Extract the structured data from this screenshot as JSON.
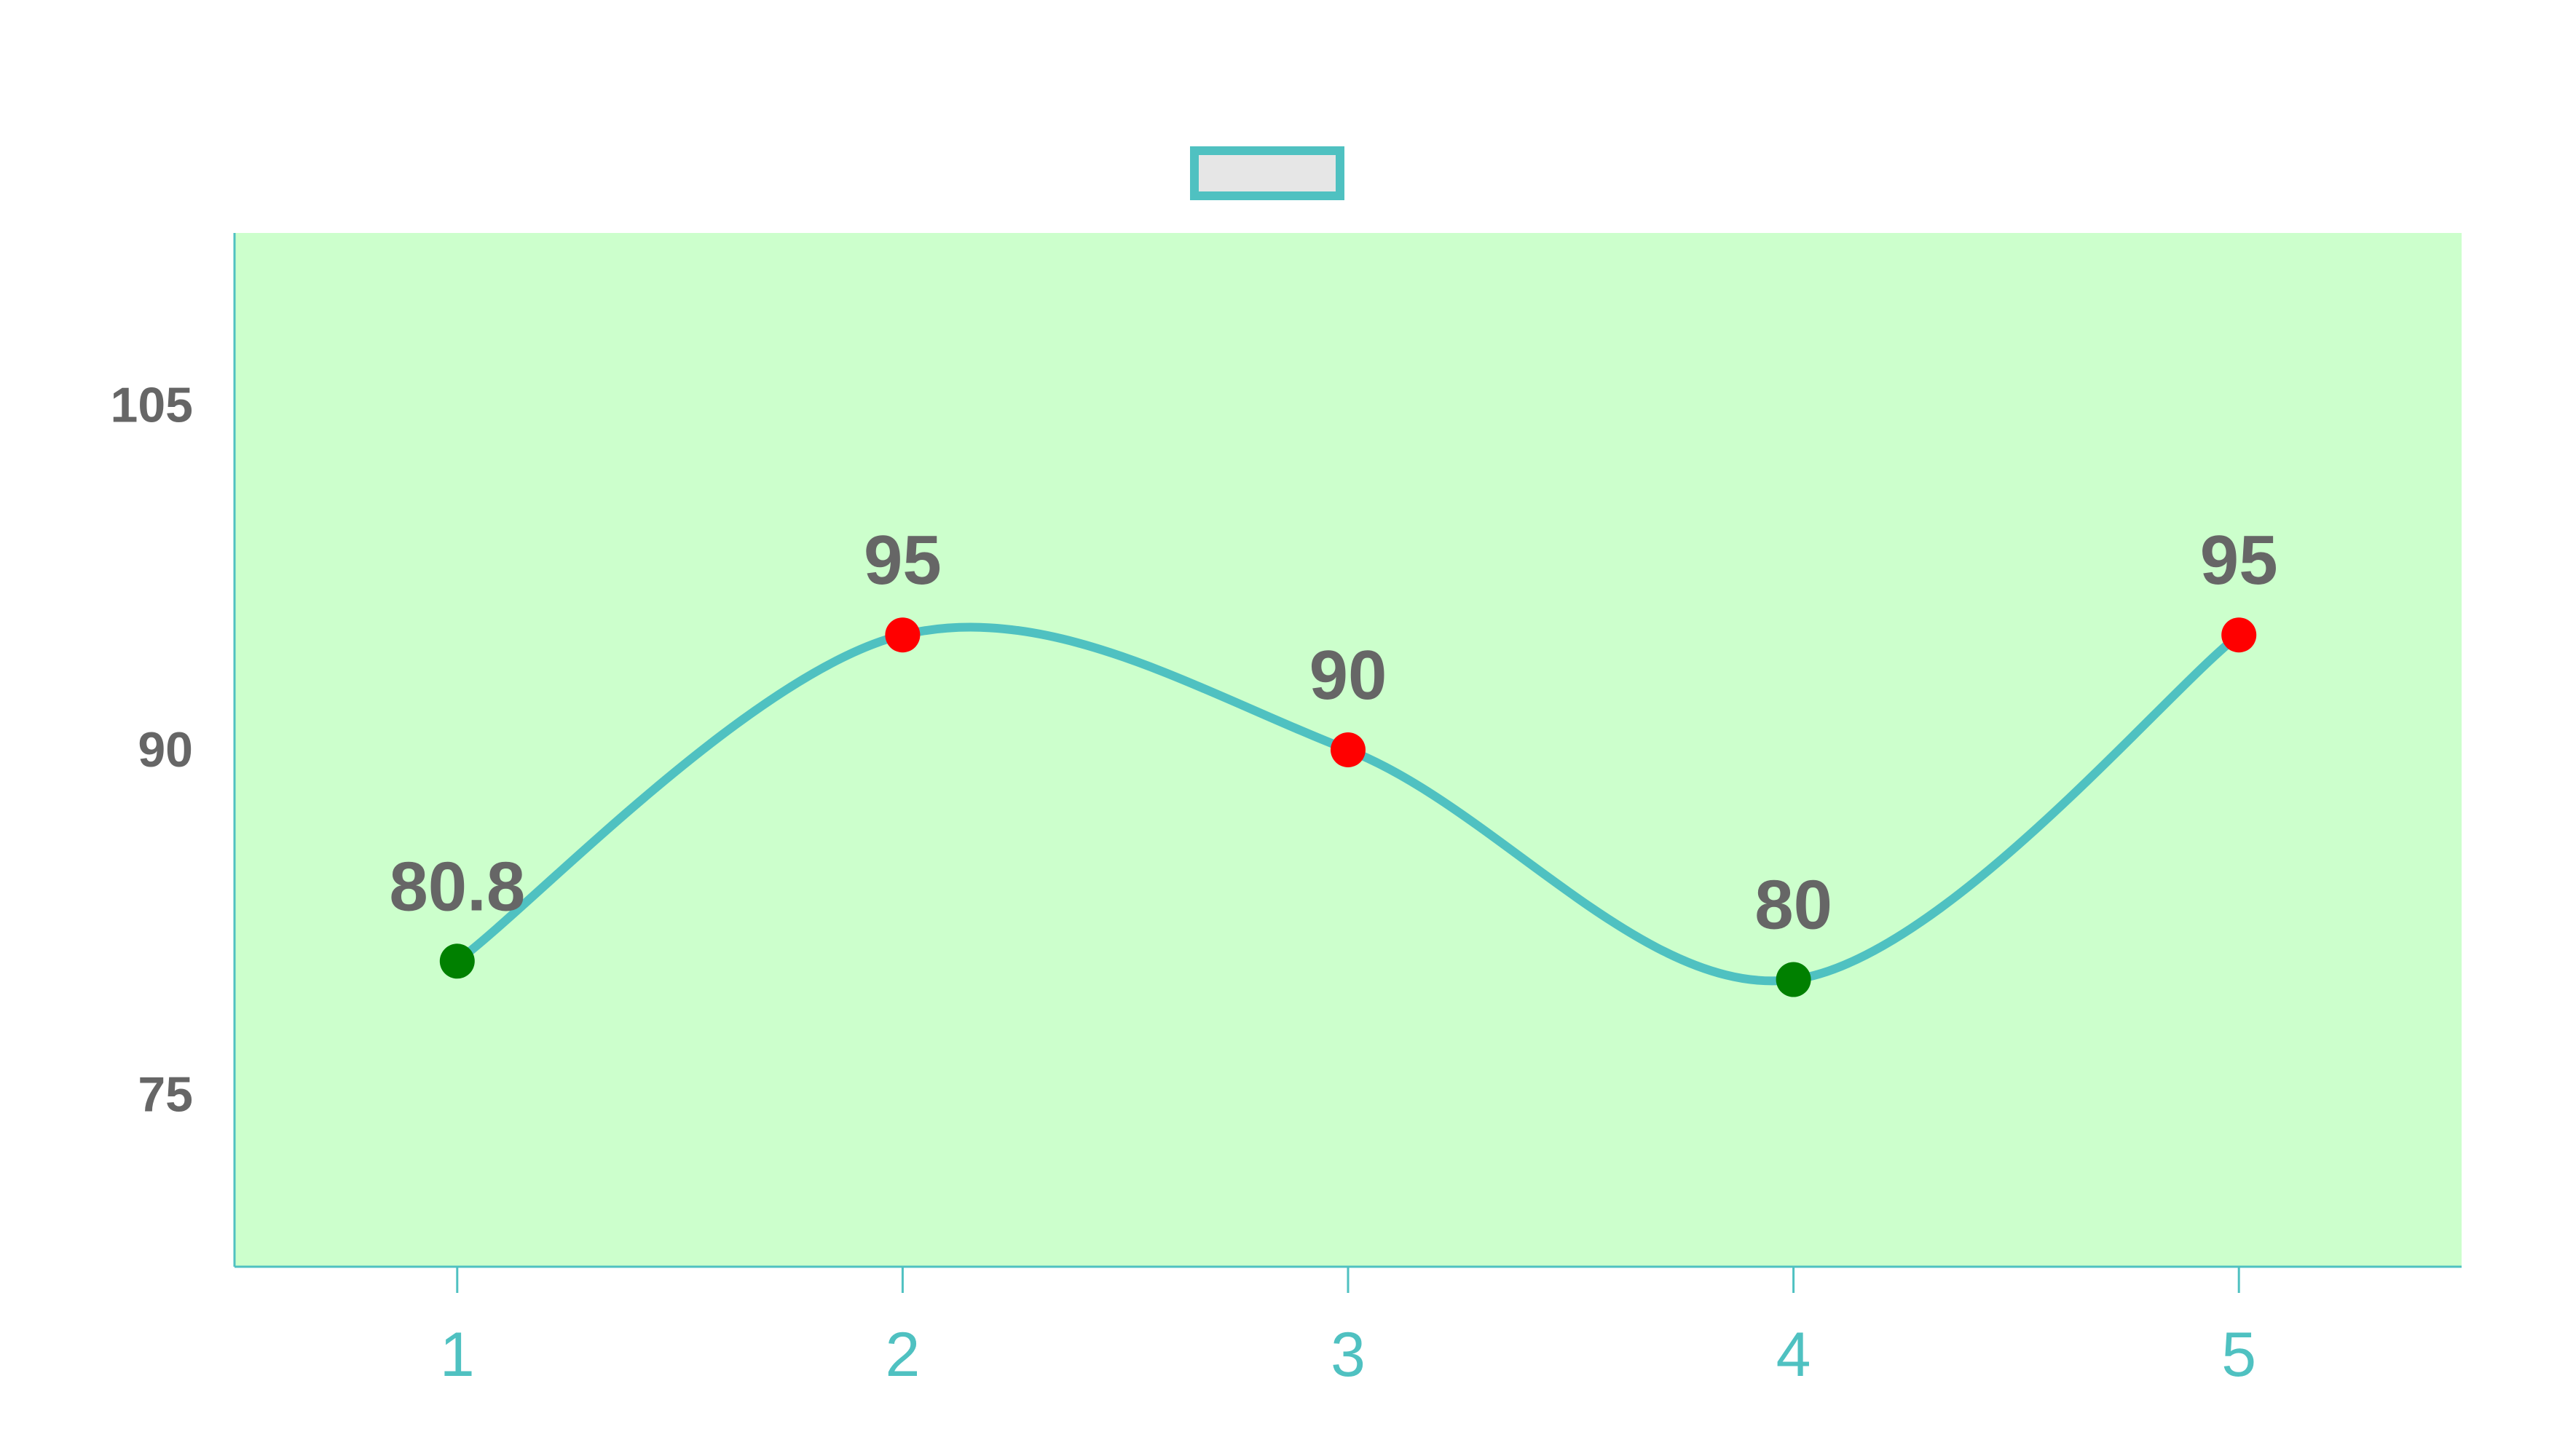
{
  "chart_data": {
    "type": "line",
    "title": "",
    "xlabel": "",
    "ylabel": "",
    "x": [
      1,
      2,
      3,
      4,
      5
    ],
    "series": [
      {
        "name": "",
        "values": [
          80.8,
          95,
          90,
          80,
          95
        ],
        "labels": [
          "80.8",
          "95",
          "90",
          "80",
          "95"
        ],
        "line_color": "#4fc1c1",
        "point_colors": [
          "#008000",
          "#ff0000",
          "#ff0000",
          "#008000",
          "#ff0000"
        ],
        "smooth": true
      }
    ],
    "x_ticks": [
      "1",
      "2",
      "3",
      "4",
      "5"
    ],
    "y_ticks": [
      "75",
      "90",
      "105"
    ],
    "xlim": [
      0.5,
      5.5
    ],
    "ylim": [
      67.5,
      112.5
    ],
    "grid": false,
    "legend": "top-center",
    "colors": {
      "plot_background": "#ccffcc",
      "axis": "#4fc1c1",
      "x_tick_text": "#4fc1c1",
      "y_tick_text": "#666666",
      "data_label_text": "#666666",
      "legend_swatch_fill": "#e6e6e6",
      "legend_swatch_border": "#4fc1c1"
    }
  }
}
